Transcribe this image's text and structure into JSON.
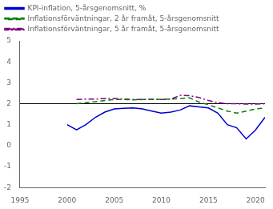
{
  "chart_data": {
    "type": "line",
    "xlim": [
      1995,
      2021
    ],
    "xticks": [
      1995,
      2000,
      2005,
      2010,
      2015,
      2020
    ],
    "ylim": [
      -2,
      5
    ],
    "yticks": [
      -2,
      -1,
      0,
      1,
      2,
      3,
      4,
      5
    ],
    "grid": false,
    "legend": "upper left",
    "hline": {
      "value": 2.0,
      "color": "#000000"
    },
    "series": [
      {
        "name": "KPI-inflation, 5-årsgenomsnitt, %",
        "color": "#0000cc",
        "line_style": "solid",
        "x": [
          2000,
          2001,
          2002,
          2003,
          2004,
          2005,
          2006,
          2007,
          2008,
          2009,
          2010,
          2011,
          2012,
          2013,
          2014,
          2015,
          2016,
          2017,
          2018,
          2019,
          2020,
          2021
        ],
        "values": [
          1.0,
          0.75,
          1.0,
          1.35,
          1.6,
          1.75,
          1.78,
          1.8,
          1.75,
          1.65,
          1.55,
          1.6,
          1.7,
          1.9,
          1.85,
          1.8,
          1.55,
          1.0,
          0.85,
          0.32,
          0.75,
          1.35
        ]
      },
      {
        "name": "Inflationsförväntningar, 2 år framåt, 5-årsgenomsnitt",
        "color": "#008000",
        "line_style": "dashed",
        "x": [
          2001,
          2002,
          2003,
          2004,
          2005,
          2006,
          2007,
          2008,
          2009,
          2010,
          2011,
          2012,
          2013,
          2014,
          2015,
          2016,
          2017,
          2018,
          2019,
          2020,
          2021
        ],
        "values": [
          2.0,
          2.05,
          2.1,
          2.15,
          2.2,
          2.2,
          2.18,
          2.2,
          2.22,
          2.2,
          2.22,
          2.25,
          2.28,
          2.08,
          1.95,
          1.8,
          1.65,
          1.55,
          1.65,
          1.75,
          1.8
        ]
      },
      {
        "name": "Inflationsförväntningar, 5 år framåt, 5-årsgenomsnitt",
        "color": "#800080",
        "line_style": "dashdot",
        "x": [
          2001,
          2002,
          2003,
          2004,
          2005,
          2006,
          2007,
          2008,
          2009,
          2010,
          2011,
          2012,
          2013,
          2014,
          2015,
          2016,
          2017,
          2018,
          2019,
          2020,
          2021
        ],
        "values": [
          2.2,
          2.22,
          2.22,
          2.25,
          2.25,
          2.22,
          2.2,
          2.2,
          2.22,
          2.2,
          2.22,
          2.4,
          2.38,
          2.3,
          2.15,
          2.05,
          2.0,
          2.0,
          1.98,
          1.98,
          2.0
        ]
      }
    ]
  }
}
